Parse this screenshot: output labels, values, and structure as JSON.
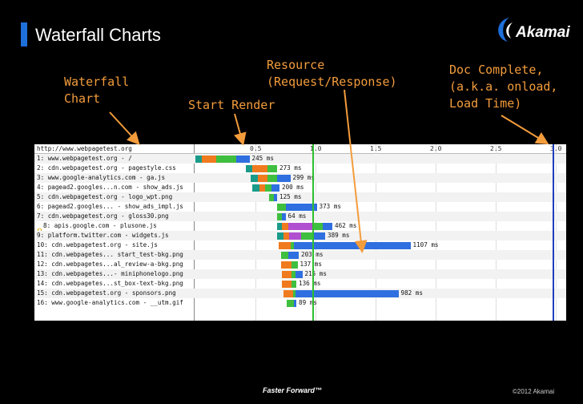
{
  "slide": {
    "title": "Waterfall Charts",
    "logo_text": "Akamai",
    "footer": "Faster Forward™",
    "copyright": "©2012 Akamai"
  },
  "annotations": {
    "waterfall": "Waterfall\nChart",
    "start_render": "Start Render",
    "resource": "Resource\n(Request/Response)",
    "doc_complete": "Doc Complete,\n(a.k.a. onload,\nLoad Time)"
  },
  "colors": {
    "accent_orange": "#f39c3c",
    "title_bar": "#1e6fd9",
    "dns": "#1a9b8a",
    "connect": "#f07a1e",
    "ssl": "#b14fd1",
    "ttfb": "#3fbf3f",
    "download": "#2f6fe0",
    "render_line": "#2fbf2f",
    "onload_line": "#1f3fbf"
  },
  "waterfall": {
    "ticks": [
      "0.5",
      "1.0",
      "1.5",
      "2.0",
      "2.5",
      "3.0"
    ],
    "render_time": 0.97,
    "onload_time": 2.97,
    "rows": [
      {
        "label": "http://www.webpagetest.org",
        "segments": [],
        "ms_label": ""
      },
      {
        "label": "1: www.webpagetest.org - /",
        "segments": [
          [
            "dns",
            0.0,
            0.05
          ],
          [
            "connect",
            0.05,
            0.17
          ],
          [
            "ttfb",
            0.17,
            0.34
          ],
          [
            "download",
            0.34,
            0.45
          ]
        ],
        "ms_label": "245 ms"
      },
      {
        "label": "2: cdn.webpagetest.org - pagestyle.css",
        "segments": [
          [
            "dns",
            0.42,
            0.47
          ],
          [
            "connect",
            0.47,
            0.6
          ],
          [
            "ttfb",
            0.6,
            0.68
          ]
        ],
        "ms_label": "273 ms"
      },
      {
        "label": "3: www.google-analytics.com - ga.js",
        "segments": [
          [
            "dns",
            0.46,
            0.52
          ],
          [
            "connect",
            0.52,
            0.6
          ],
          [
            "ttfb",
            0.6,
            0.68
          ],
          [
            "download",
            0.68,
            0.79
          ]
        ],
        "ms_label": "299 ms"
      },
      {
        "label": "4: pagead2.googles...n.com - show_ads.js",
        "segments": [
          [
            "dns",
            0.47,
            0.53
          ],
          [
            "connect",
            0.53,
            0.58
          ],
          [
            "ttfb",
            0.58,
            0.63
          ],
          [
            "download",
            0.63,
            0.7
          ]
        ],
        "ms_label": "200 ms"
      },
      {
        "label": "5: cdn.webpagetest.org - logo_wpt.png",
        "segments": [
          [
            "ttfb",
            0.61,
            0.65
          ],
          [
            "download",
            0.65,
            0.68
          ]
        ],
        "ms_label": "125 ms"
      },
      {
        "label": "6: pagead2.googles... - show_ads_impl.js",
        "segments": [
          [
            "ttfb",
            0.68,
            0.75
          ],
          [
            "download",
            0.75,
            1.01
          ]
        ],
        "ms_label": "373 ms"
      },
      {
        "label": "7: cdn.webpagetest.org - gloss30.png",
        "segments": [
          [
            "ttfb",
            0.68,
            0.72
          ],
          [
            "download",
            0.72,
            0.75
          ]
        ],
        "ms_label": "64 ms"
      },
      {
        "label": "8: apis.google.com - plusone.js",
        "segments": [
          [
            "dns",
            0.68,
            0.72
          ],
          [
            "connect",
            0.72,
            0.77
          ],
          [
            "ssl",
            0.77,
            0.97
          ],
          [
            "ttfb",
            0.97,
            1.06
          ],
          [
            "download",
            1.06,
            1.14
          ]
        ],
        "ms_label": "462 ms"
      },
      {
        "label": "9: platform.twitter.com - widgets.js",
        "segments": [
          [
            "dns",
            0.68,
            0.73
          ],
          [
            "connect",
            0.73,
            0.78
          ],
          [
            "ssl",
            0.78,
            0.88
          ],
          [
            "ttfb",
            0.88,
            0.98
          ],
          [
            "download",
            0.98,
            1.08
          ]
        ],
        "ms_label": "389 ms"
      },
      {
        "label": "10: cdn.webpagetest.org - site.js",
        "segments": [
          [
            "connect",
            0.69,
            0.79
          ],
          [
            "ttfb",
            0.79,
            0.82
          ],
          [
            "download",
            0.82,
            1.79
          ]
        ],
        "ms_label": "1107 ms"
      },
      {
        "label": "11: cdn.webpagetes... start_test-bkg.png",
        "segments": [
          [
            "ttfb",
            0.71,
            0.77
          ],
          [
            "download",
            0.77,
            0.86
          ]
        ],
        "ms_label": "203 ms"
      },
      {
        "label": "12: cdn.webpagetes...al_review-a-bkg.png",
        "segments": [
          [
            "connect",
            0.71,
            0.8
          ],
          [
            "ttfb",
            0.8,
            0.85
          ]
        ],
        "ms_label": "137 ms"
      },
      {
        "label": "13: cdn.webpagetes...- miniphonelogo.png",
        "segments": [
          [
            "connect",
            0.72,
            0.8
          ],
          [
            "ttfb",
            0.8,
            0.83
          ],
          [
            "download",
            0.83,
            0.89
          ]
        ],
        "ms_label": "215 ms"
      },
      {
        "label": "14: cdn.webpagetes...st_box-text-bkg.png",
        "segments": [
          [
            "connect",
            0.72,
            0.8
          ],
          [
            "ttfb",
            0.8,
            0.84
          ]
        ],
        "ms_label": "136 ms"
      },
      {
        "label": "15: cdn.webpagetest.org - sponsors.png",
        "segments": [
          [
            "connect",
            0.73,
            0.81
          ],
          [
            "ttfb",
            0.81,
            0.83
          ],
          [
            "download",
            0.83,
            1.69
          ]
        ],
        "ms_label": "982 ms"
      },
      {
        "label": "16: www.google-analytics.com - __utm.gif",
        "segments": [
          [
            "ttfb",
            0.76,
            0.82
          ],
          [
            "download",
            0.82,
            0.84
          ]
        ],
        "ms_label": "89 ms"
      }
    ]
  }
}
